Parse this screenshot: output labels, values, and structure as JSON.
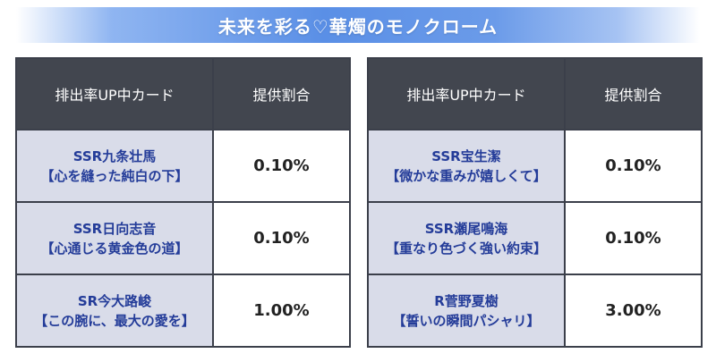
{
  "banner": {
    "title": "未来を彩る♡華燭のモノクローム"
  },
  "tables": [
    {
      "header": {
        "card_col": "排出率UP中カード",
        "rate_col": "提供割合"
      },
      "rows": [
        {
          "rarity_name": "SSR九条壮馬",
          "card_title": "【心を縫った純白の下】",
          "rate": "0.10%"
        },
        {
          "rarity_name": "SSR日向志音",
          "card_title": "【心通じる黄金色の道】",
          "rate": "0.10%"
        },
        {
          "rarity_name": "SR今大路峻",
          "card_title": "【この腕に、最大の愛を】",
          "rate": "1.00%"
        }
      ]
    },
    {
      "header": {
        "card_col": "排出率UP中カード",
        "rate_col": "提供割合"
      },
      "rows": [
        {
          "rarity_name": "SSR宝生潔",
          "card_title": "【微かな重みが嬉しくて】",
          "rate": "0.10%"
        },
        {
          "rarity_name": "SSR瀬尾鳴海",
          "card_title": "【重なり色づく強い約束】",
          "rate": "0.10%"
        },
        {
          "rarity_name": "R菅野夏樹",
          "card_title": "【誓いの瞬間パシャリ】",
          "rate": "3.00%"
        }
      ]
    }
  ]
}
